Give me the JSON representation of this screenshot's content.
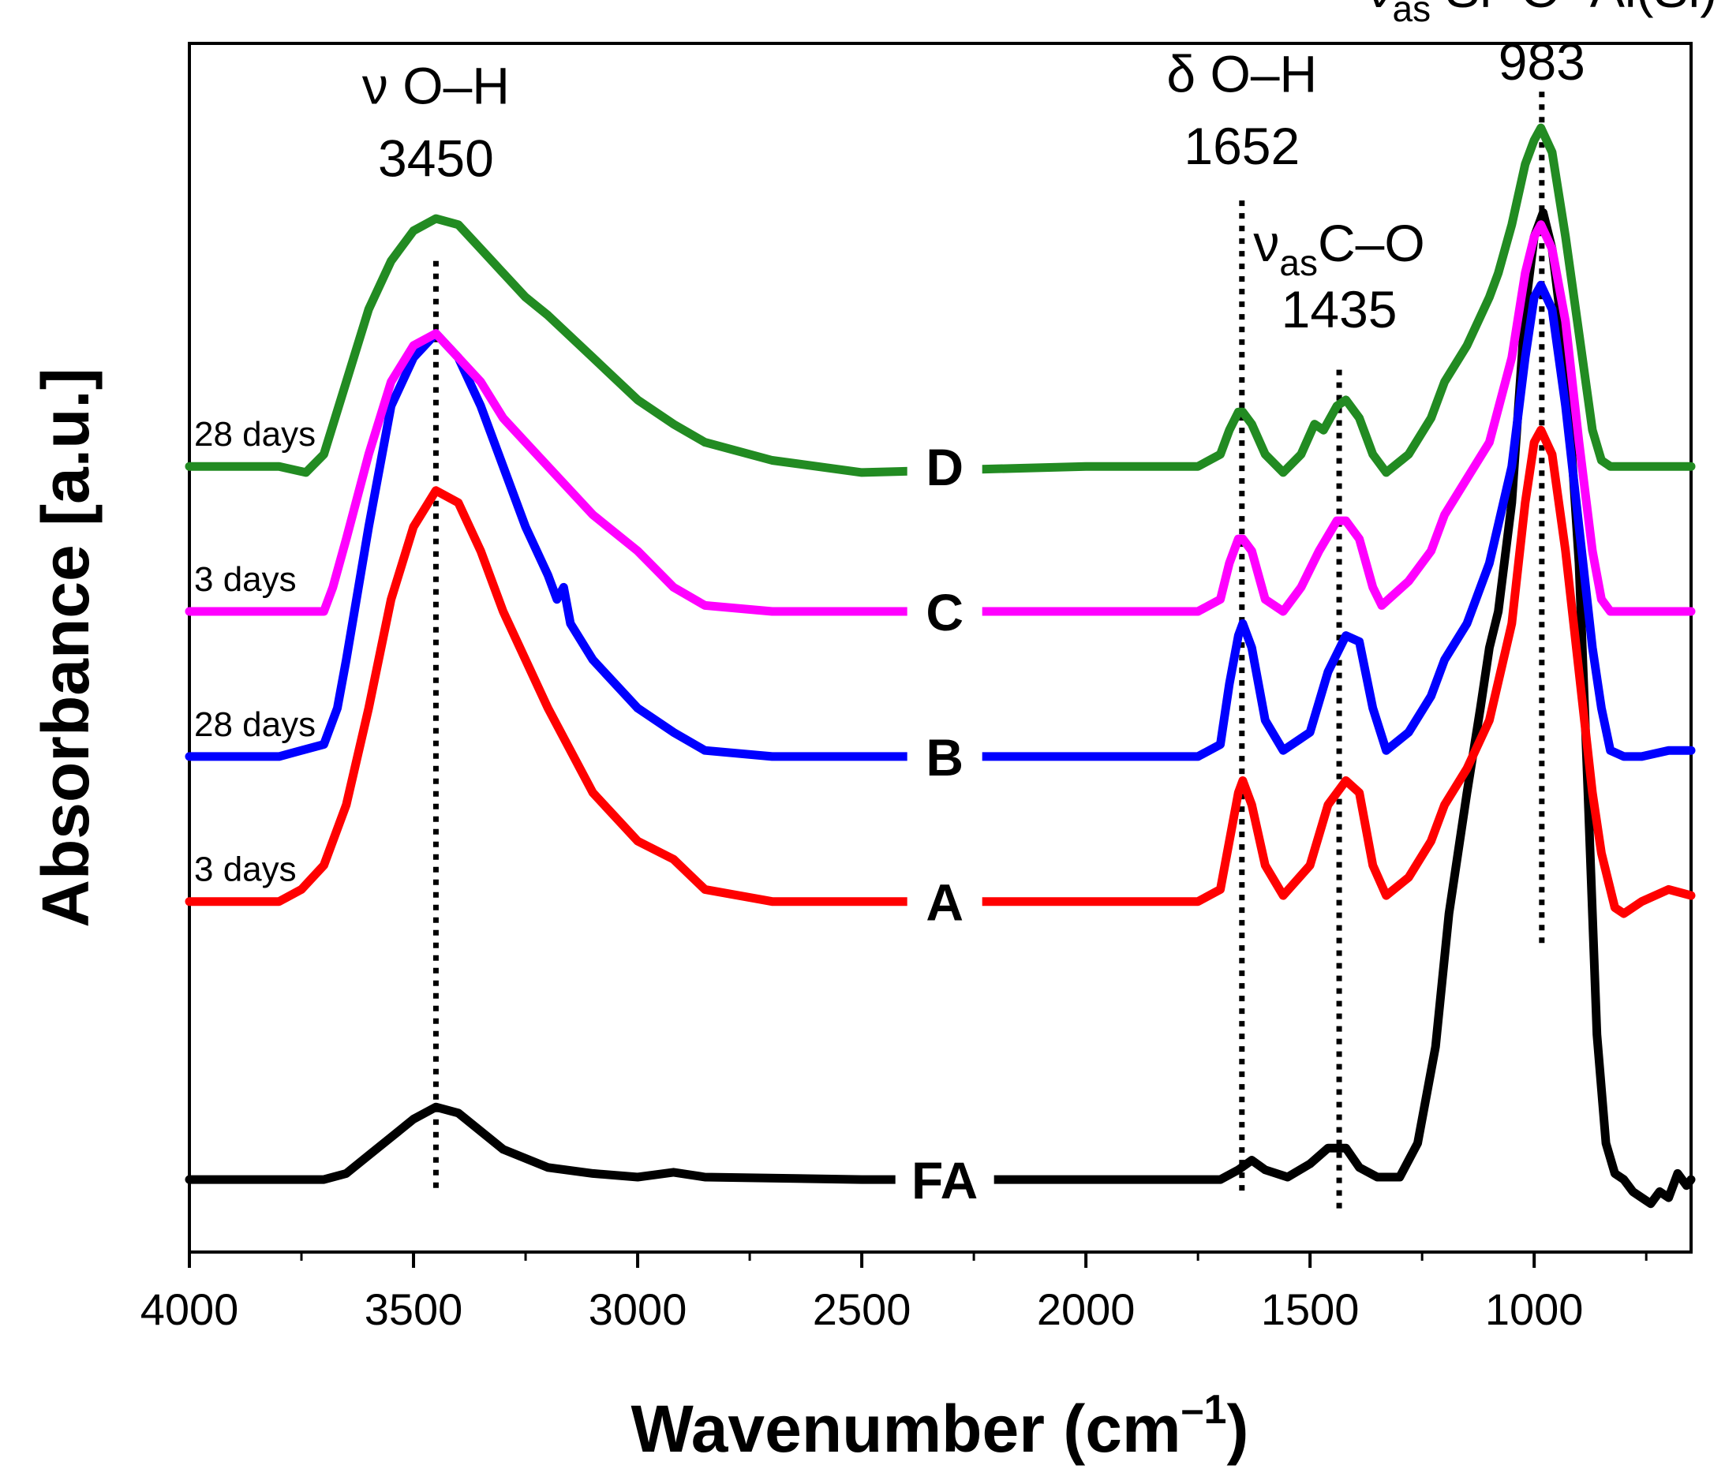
{
  "chart_data": {
    "type": "line",
    "xlabel": "Wavenumber (cm",
    "xlabel_sup": "–1",
    "xlabel_tail": ")",
    "ylabel": "Absorbance [a.u.]",
    "xlim": [
      4000,
      650
    ],
    "x_reversed": true,
    "xticks": [
      4000,
      3500,
      3000,
      2500,
      2000,
      1500,
      1000
    ],
    "xtick_labels": [
      "4000",
      "3500",
      "3000",
      "2500",
      "2000",
      "1500",
      "1000"
    ],
    "ylim": [
      0,
      100
    ],
    "y_ticks_shown": false,
    "legend": "none",
    "series": [
      {
        "name": "FA",
        "color": "#000000",
        "baseline": 6,
        "points": [
          [
            4000,
            6
          ],
          [
            3800,
            6
          ],
          [
            3700,
            6
          ],
          [
            3650,
            6.5
          ],
          [
            3600,
            8
          ],
          [
            3550,
            9.5
          ],
          [
            3500,
            11
          ],
          [
            3450,
            12
          ],
          [
            3400,
            11.5
          ],
          [
            3350,
            10
          ],
          [
            3300,
            8.5
          ],
          [
            3200,
            7
          ],
          [
            3100,
            6.5
          ],
          [
            3000,
            6.2
          ],
          [
            2920,
            6.6
          ],
          [
            2850,
            6.2
          ],
          [
            2500,
            6
          ],
          [
            2000,
            6
          ],
          [
            1800,
            6
          ],
          [
            1700,
            6
          ],
          [
            1660,
            6.8
          ],
          [
            1630,
            7.6
          ],
          [
            1600,
            6.8
          ],
          [
            1550,
            6.2
          ],
          [
            1500,
            7.3
          ],
          [
            1460,
            8.6
          ],
          [
            1420,
            8.6
          ],
          [
            1390,
            7
          ],
          [
            1350,
            6.2
          ],
          [
            1300,
            6.2
          ],
          [
            1260,
            9
          ],
          [
            1220,
            17
          ],
          [
            1190,
            28
          ],
          [
            1150,
            38
          ],
          [
            1120,
            45
          ],
          [
            1100,
            50
          ],
          [
            1080,
            53
          ],
          [
            1050,
            62
          ],
          [
            1020,
            78
          ],
          [
            1000,
            84
          ],
          [
            980,
            86
          ],
          [
            960,
            83
          ],
          [
            930,
            74
          ],
          [
            900,
            57
          ],
          [
            880,
            38
          ],
          [
            860,
            18
          ],
          [
            840,
            9
          ],
          [
            820,
            6.5
          ],
          [
            800,
            6
          ],
          [
            780,
            5
          ],
          [
            760,
            4.5
          ],
          [
            740,
            4
          ],
          [
            720,
            5
          ],
          [
            700,
            4.5
          ],
          [
            680,
            6.5
          ],
          [
            660,
            5.5
          ],
          [
            650,
            6
          ]
        ]
      },
      {
        "name": "A",
        "color": "#ff0000",
        "baseline": 29,
        "age": "3 days",
        "points": [
          [
            4000,
            29
          ],
          [
            3800,
            29
          ],
          [
            3750,
            30
          ],
          [
            3700,
            32
          ],
          [
            3650,
            37
          ],
          [
            3600,
            45
          ],
          [
            3550,
            54
          ],
          [
            3500,
            60
          ],
          [
            3450,
            63
          ],
          [
            3400,
            62
          ],
          [
            3350,
            58
          ],
          [
            3300,
            53
          ],
          [
            3250,
            49
          ],
          [
            3200,
            45
          ],
          [
            3100,
            38
          ],
          [
            3000,
            34
          ],
          [
            2920,
            32.5
          ],
          [
            2850,
            30
          ],
          [
            2700,
            29
          ],
          [
            2500,
            29
          ],
          [
            2000,
            29
          ],
          [
            1750,
            29
          ],
          [
            1700,
            30
          ],
          [
            1680,
            34
          ],
          [
            1660,
            38
          ],
          [
            1650,
            39
          ],
          [
            1630,
            37
          ],
          [
            1600,
            32
          ],
          [
            1560,
            29.5
          ],
          [
            1500,
            32
          ],
          [
            1460,
            37
          ],
          [
            1420,
            39
          ],
          [
            1390,
            38
          ],
          [
            1360,
            32
          ],
          [
            1330,
            29.5
          ],
          [
            1280,
            31
          ],
          [
            1230,
            34
          ],
          [
            1200,
            37
          ],
          [
            1150,
            40
          ],
          [
            1100,
            44
          ],
          [
            1050,
            52
          ],
          [
            1020,
            62
          ],
          [
            1000,
            67
          ],
          [
            985,
            68
          ],
          [
            960,
            66
          ],
          [
            930,
            58
          ],
          [
            900,
            48
          ],
          [
            870,
            38
          ],
          [
            850,
            33
          ],
          [
            820,
            28.5
          ],
          [
            800,
            28
          ],
          [
            760,
            29
          ],
          [
            700,
            30
          ],
          [
            650,
            29.5
          ]
        ]
      },
      {
        "name": "B",
        "color": "#0000ff",
        "baseline": 41,
        "age": "28 days",
        "points": [
          [
            4000,
            41
          ],
          [
            3800,
            41
          ],
          [
            3750,
            41.5
          ],
          [
            3700,
            42
          ],
          [
            3670,
            45
          ],
          [
            3650,
            49
          ],
          [
            3600,
            60
          ],
          [
            3550,
            70
          ],
          [
            3500,
            74
          ],
          [
            3450,
            76
          ],
          [
            3400,
            74
          ],
          [
            3350,
            70
          ],
          [
            3300,
            65
          ],
          [
            3250,
            60
          ],
          [
            3200,
            56
          ],
          [
            3180,
            54
          ],
          [
            3165,
            55
          ],
          [
            3150,
            52
          ],
          [
            3100,
            49
          ],
          [
            3000,
            45
          ],
          [
            2920,
            43
          ],
          [
            2850,
            41.5
          ],
          [
            2700,
            41
          ],
          [
            2500,
            41
          ],
          [
            2000,
            41
          ],
          [
            1750,
            41
          ],
          [
            1700,
            42
          ],
          [
            1680,
            47
          ],
          [
            1660,
            51
          ],
          [
            1650,
            52
          ],
          [
            1630,
            50
          ],
          [
            1600,
            44
          ],
          [
            1560,
            41.5
          ],
          [
            1500,
            43
          ],
          [
            1460,
            48
          ],
          [
            1420,
            51
          ],
          [
            1390,
            50.5
          ],
          [
            1360,
            45
          ],
          [
            1330,
            41.5
          ],
          [
            1280,
            43
          ],
          [
            1230,
            46
          ],
          [
            1200,
            49
          ],
          [
            1150,
            52
          ],
          [
            1100,
            57
          ],
          [
            1050,
            65
          ],
          [
            1020,
            74
          ],
          [
            1000,
            79
          ],
          [
            985,
            80
          ],
          [
            960,
            78
          ],
          [
            930,
            70
          ],
          [
            900,
            60
          ],
          [
            870,
            50
          ],
          [
            850,
            45
          ],
          [
            830,
            41.5
          ],
          [
            800,
            41
          ],
          [
            760,
            41
          ],
          [
            700,
            41.5
          ],
          [
            650,
            41.5
          ]
        ]
      },
      {
        "name": "C",
        "color": "#ff00ff",
        "baseline": 53,
        "age": "3 days",
        "points": [
          [
            4000,
            53
          ],
          [
            3800,
            53
          ],
          [
            3700,
            53
          ],
          [
            3680,
            55
          ],
          [
            3650,
            59
          ],
          [
            3600,
            66
          ],
          [
            3550,
            72
          ],
          [
            3500,
            75
          ],
          [
            3450,
            76
          ],
          [
            3400,
            74
          ],
          [
            3350,
            72
          ],
          [
            3300,
            69
          ],
          [
            3250,
            67
          ],
          [
            3200,
            65
          ],
          [
            3100,
            61
          ],
          [
            3000,
            58
          ],
          [
            2920,
            55
          ],
          [
            2850,
            53.5
          ],
          [
            2700,
            53
          ],
          [
            2500,
            53
          ],
          [
            2000,
            53
          ],
          [
            1750,
            53
          ],
          [
            1700,
            54
          ],
          [
            1680,
            57
          ],
          [
            1660,
            59
          ],
          [
            1650,
            59
          ],
          [
            1630,
            58
          ],
          [
            1600,
            54
          ],
          [
            1560,
            53
          ],
          [
            1520,
            55
          ],
          [
            1480,
            58
          ],
          [
            1440,
            60.5
          ],
          [
            1420,
            60.5
          ],
          [
            1390,
            59
          ],
          [
            1360,
            55
          ],
          [
            1340,
            53.5
          ],
          [
            1280,
            55.5
          ],
          [
            1230,
            58
          ],
          [
            1200,
            61
          ],
          [
            1150,
            64
          ],
          [
            1100,
            67
          ],
          [
            1050,
            74
          ],
          [
            1020,
            81
          ],
          [
            1000,
            84
          ],
          [
            985,
            85
          ],
          [
            960,
            83
          ],
          [
            930,
            77
          ],
          [
            900,
            67
          ],
          [
            870,
            58
          ],
          [
            850,
            54
          ],
          [
            830,
            53
          ],
          [
            800,
            53
          ],
          [
            760,
            53
          ],
          [
            700,
            53
          ],
          [
            650,
            53
          ]
        ]
      },
      {
        "name": "D",
        "color": "#228b22",
        "baseline": 65,
        "age": "28 days",
        "points": [
          [
            4000,
            65
          ],
          [
            3800,
            65
          ],
          [
            3740,
            64.5
          ],
          [
            3700,
            66
          ],
          [
            3650,
            72
          ],
          [
            3600,
            78
          ],
          [
            3550,
            82
          ],
          [
            3500,
            84.5
          ],
          [
            3450,
            85.5
          ],
          [
            3400,
            85
          ],
          [
            3350,
            83
          ],
          [
            3300,
            81
          ],
          [
            3250,
            79
          ],
          [
            3200,
            77.5
          ],
          [
            3100,
            74
          ],
          [
            3000,
            70.5
          ],
          [
            2920,
            68.5
          ],
          [
            2850,
            67
          ],
          [
            2700,
            65.5
          ],
          [
            2600,
            65
          ],
          [
            2500,
            64.5
          ],
          [
            2000,
            65
          ],
          [
            1750,
            65
          ],
          [
            1700,
            66
          ],
          [
            1680,
            68
          ],
          [
            1660,
            69.5
          ],
          [
            1650,
            69.5
          ],
          [
            1630,
            68.5
          ],
          [
            1600,
            66
          ],
          [
            1560,
            64.5
          ],
          [
            1520,
            66
          ],
          [
            1490,
            68.5
          ],
          [
            1470,
            68
          ],
          [
            1440,
            70
          ],
          [
            1420,
            70.5
          ],
          [
            1390,
            69
          ],
          [
            1360,
            66
          ],
          [
            1330,
            64.5
          ],
          [
            1280,
            66
          ],
          [
            1230,
            69
          ],
          [
            1200,
            72
          ],
          [
            1150,
            75
          ],
          [
            1100,
            79
          ],
          [
            1080,
            81
          ],
          [
            1050,
            85
          ],
          [
            1020,
            90
          ],
          [
            1000,
            92
          ],
          [
            985,
            93
          ],
          [
            960,
            91
          ],
          [
            930,
            84
          ],
          [
            900,
            76
          ],
          [
            870,
            68
          ],
          [
            850,
            65.5
          ],
          [
            830,
            65
          ],
          [
            800,
            65
          ],
          [
            760,
            65
          ],
          [
            700,
            65
          ],
          [
            650,
            65
          ]
        ]
      }
    ],
    "band_markers": [
      {
        "x": 3450,
        "y_top": 82,
        "y_bottom": 5
      },
      {
        "x": 1652,
        "y_top": 87,
        "y_bottom": 5
      },
      {
        "x": 1435,
        "y_top": 73,
        "y_bottom": 3.5
      },
      {
        "x": 983,
        "y_top": 96,
        "y_bottom": 25
      }
    ],
    "band_labels": [
      {
        "symbol": "ν",
        "sub": "",
        "text": " O–H",
        "value": "3450",
        "x": 3450,
        "y_label": 95,
        "y_value": 89
      },
      {
        "symbol": "δ",
        "sub": "",
        "text": " O–H",
        "value": "1652",
        "x": 1652,
        "y_label": 96,
        "y_value": 90
      },
      {
        "symbol": "ν",
        "sub": "as",
        "text": "C–O",
        "value": "1435",
        "x": 1435,
        "y_label": 82,
        "y_value": 76.5
      },
      {
        "symbol": "ν",
        "sub": "as",
        "text": " Si–O–Al(Si)",
        "value": "983",
        "x": 983,
        "y_label": 103,
        "y_value": 97
      }
    ]
  }
}
